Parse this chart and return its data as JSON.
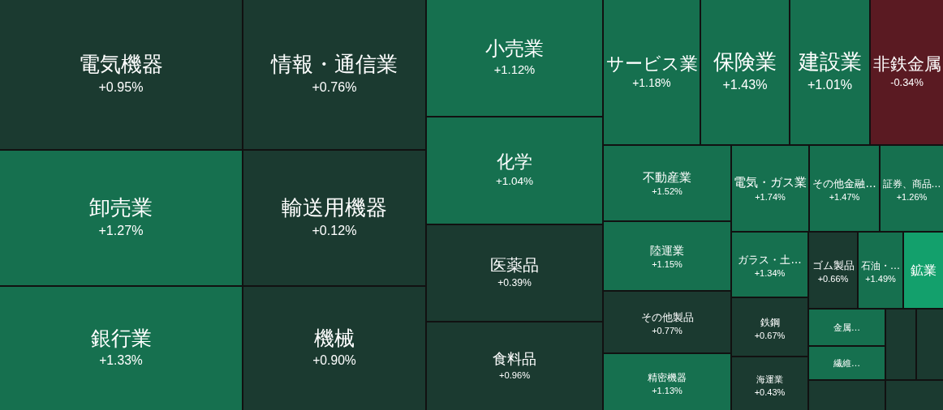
{
  "chart_data": {
    "type": "other",
    "categories": [
      "電気機器",
      "卸売業",
      "銀行業",
      "情報・通信業",
      "輸送用機器",
      "機械",
      "小売業",
      "化学",
      "医薬品",
      "食料品",
      "サービス業",
      "保険業",
      "建設業",
      "非鉄金属",
      "不動産業",
      "陸運業",
      "その他製品",
      "精密機器",
      "電気・ガス業",
      "その他金融…",
      "証券、商品…",
      "ガラス・土…",
      "鉄鋼",
      "海運業",
      "ゴム製品",
      "石油・…",
      "鉱業",
      "金属…",
      "繊維…",
      null,
      null,
      null,
      null
    ],
    "values": [
      0.95,
      1.27,
      1.33,
      0.76,
      0.12,
      0.9,
      1.12,
      1.04,
      0.39,
      0.96,
      1.18,
      1.43,
      1.01,
      -0.34,
      1.52,
      1.15,
      0.77,
      1.13,
      1.74,
      1.47,
      1.26,
      1.34,
      0.67,
      0.43,
      0.66,
      1.49,
      null,
      null,
      null,
      null,
      null,
      null,
      null
    ],
    "value_labels": [
      "+0.95%",
      "+1.27%",
      "+1.33%",
      "+0.76%",
      "+0.12%",
      "+0.90%",
      "+1.12%",
      "+1.04%",
      "+0.39%",
      "+0.96%",
      "+1.18%",
      "+1.43%",
      "+1.01%",
      "-0.34%",
      "+1.52%",
      "+1.15%",
      "+0.77%",
      "+1.13%",
      "+1.74%",
      "+1.47%",
      "+1.26%",
      "+1.34%",
      "+0.67%",
      "+0.43%",
      "+0.66%",
      "+1.49%",
      null,
      null,
      null,
      null,
      null,
      null,
      null
    ],
    "colors": [
      "#1b3a30",
      "#16704f",
      "#16704f",
      "#1b3a30",
      "#1b3a30",
      "#1b3a30",
      "#16704f",
      "#16704f",
      "#1b3a30",
      "#1b3a30",
      "#16704f",
      "#16704f",
      "#16704f",
      "#5a1a22",
      "#16704f",
      "#16704f",
      "#1b3a30",
      "#16704f",
      "#16704f",
      "#16704f",
      "#16704f",
      "#16704f",
      "#1b3a30",
      "#1b3a30",
      "#1b3a30",
      "#16704f",
      "#13a06c",
      "#16704f",
      "#16704f",
      "#1b3a30",
      "#1b3a30",
      "#1b3a30",
      "#1b3a30"
    ]
  }
}
